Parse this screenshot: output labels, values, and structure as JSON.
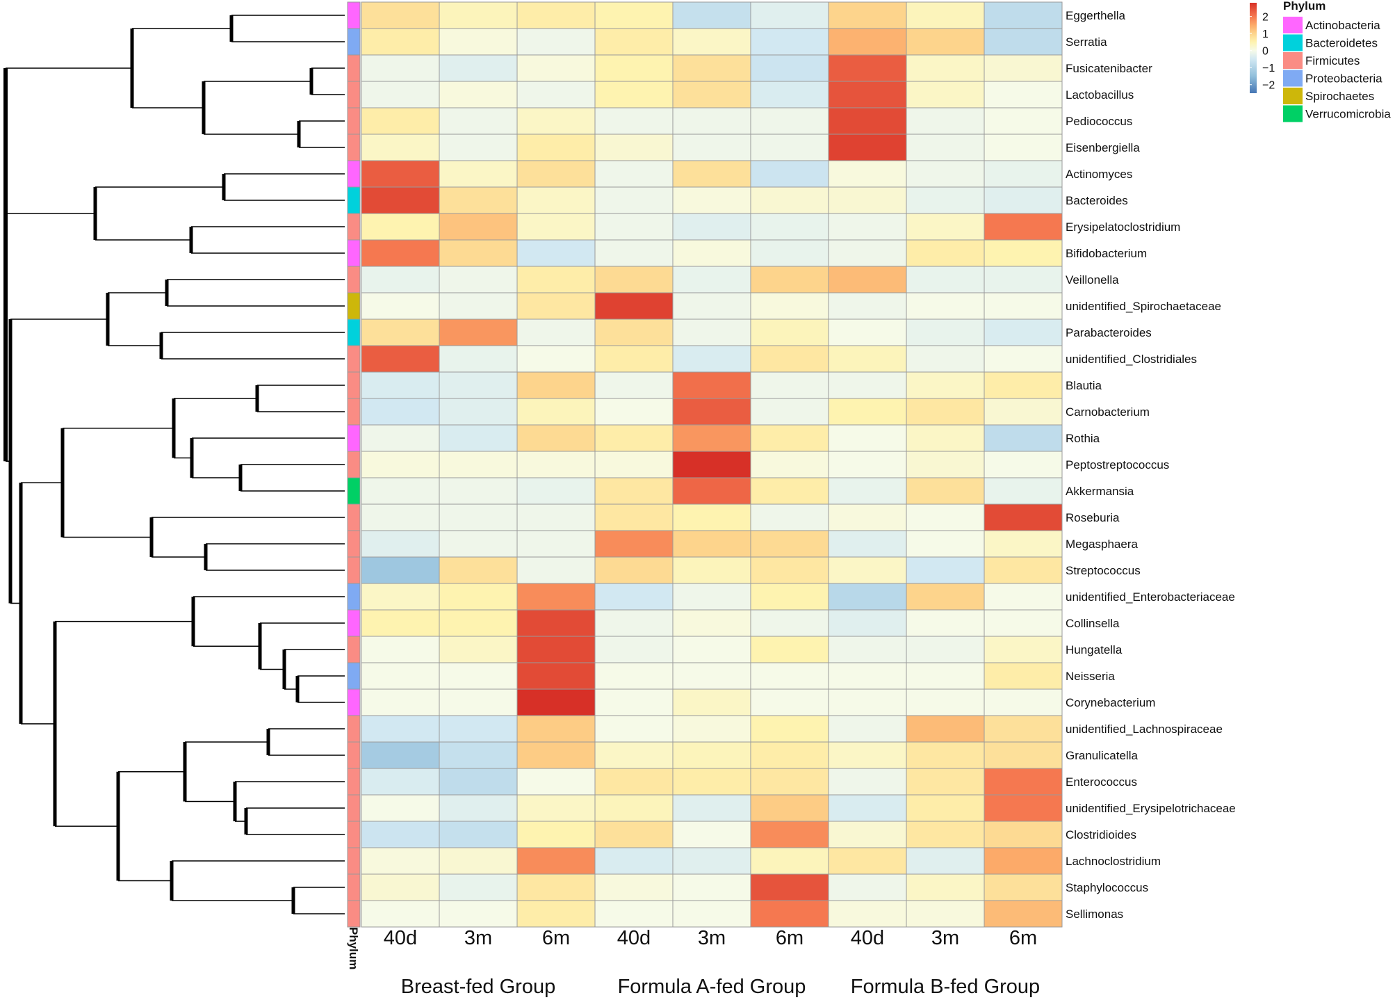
{
  "chart_data": {
    "type": "heatmap",
    "title": "",
    "rows": [
      "Eggerthella",
      "Serratia",
      "Fusicatenibacter",
      "Lactobacillus",
      "Pediococcus",
      "Eisenbergiella",
      "Actinomyces",
      "Bacteroides",
      "Erysipelatoclostridium",
      "Bifidobacterium",
      "Veillonella",
      "unidentified_Spirochaetaceae",
      "Parabacteroides",
      "unidentified_Clostridiales",
      "Blautia",
      "Carnobacterium",
      "Rothia",
      "Peptostreptococcus",
      "Akkermansia",
      "Roseburia",
      "Megasphaera",
      "Streptococcus",
      "unidentified_Enterobacteriaceae",
      "Collinsella",
      "Hungatella",
      "Neisseria",
      "Corynebacterium",
      "unidentified_Lachnospiraceae",
      "Granulicatella",
      "Enterococcus",
      "unidentified_Erysipelotrichaceae",
      "Clostridioides",
      "Lachnoclostridium",
      "Staphylococcus",
      "Sellimonas"
    ],
    "columns": [
      "40d",
      "3m",
      "6m",
      "40d",
      "3m",
      "6m",
      "40d",
      "3m",
      "6m"
    ],
    "groups": [
      {
        "name": "Breast-fed Group",
        "columns": [
          0,
          1,
          2
        ]
      },
      {
        "name": "Formula A-fed Group",
        "columns": [
          3,
          4,
          5
        ]
      },
      {
        "name": "Formula B-fed Group",
        "columns": [
          6,
          7,
          8
        ]
      }
    ],
    "values": [
      [
        0.8,
        0.4,
        0.6,
        0.5,
        -0.7,
        -0.3,
        1.0,
        0.4,
        -0.8
      ],
      [
        0.6,
        0.1,
        -0.1,
        0.6,
        0.3,
        -0.5,
        1.4,
        1.0,
        -0.8
      ],
      [
        -0.1,
        -0.3,
        0.1,
        0.5,
        0.8,
        -0.6,
        2.3,
        0.3,
        0.2
      ],
      [
        -0.1,
        0.1,
        -0.1,
        0.5,
        0.8,
        -0.4,
        2.4,
        0.3,
        0.0
      ],
      [
        0.6,
        -0.1,
        0.3,
        -0.1,
        -0.1,
        -0.1,
        2.5,
        -0.1,
        0.0
      ],
      [
        0.3,
        -0.1,
        0.6,
        0.2,
        -0.1,
        -0.1,
        2.6,
        -0.1,
        0.0
      ],
      [
        2.3,
        0.3,
        0.8,
        -0.1,
        0.8,
        -0.6,
        0.1,
        -0.1,
        -0.2
      ],
      [
        2.5,
        0.8,
        0.3,
        -0.1,
        0.1,
        0.2,
        0.2,
        -0.2,
        -0.3
      ],
      [
        0.5,
        1.2,
        0.3,
        -0.1,
        -0.3,
        -0.2,
        -0.1,
        0.3,
        2.0
      ],
      [
        2.0,
        0.9,
        -0.5,
        -0.1,
        0.1,
        -0.2,
        -0.1,
        0.6,
        0.5
      ],
      [
        -0.2,
        -0.1,
        0.6,
        0.9,
        -0.2,
        1.0,
        1.3,
        -0.2,
        -0.2
      ],
      [
        0.0,
        -0.1,
        0.7,
        2.6,
        -0.1,
        0.1,
        -0.1,
        0.0,
        0.0
      ],
      [
        0.8,
        1.7,
        -0.1,
        0.8,
        -0.1,
        0.4,
        0.0,
        -0.2,
        -0.4
      ],
      [
        2.3,
        -0.2,
        0.0,
        0.6,
        -0.4,
        0.7,
        0.4,
        -0.1,
        0.0
      ],
      [
        -0.4,
        -0.3,
        1.0,
        -0.1,
        2.1,
        -0.1,
        -0.1,
        0.3,
        0.6
      ],
      [
        -0.5,
        -0.3,
        0.4,
        0.0,
        2.3,
        -0.1,
        0.5,
        0.7,
        0.2
      ],
      [
        -0.1,
        -0.4,
        0.9,
        0.6,
        1.7,
        0.6,
        0.0,
        0.3,
        -0.8
      ],
      [
        0.1,
        0.1,
        0.1,
        0.1,
        2.8,
        0.1,
        0.0,
        0.2,
        0.0
      ],
      [
        -0.1,
        -0.1,
        -0.2,
        0.7,
        2.2,
        0.6,
        -0.2,
        0.8,
        -0.2
      ],
      [
        -0.1,
        -0.1,
        -0.1,
        0.7,
        0.5,
        -0.1,
        0.1,
        0.0,
        2.5
      ],
      [
        -0.3,
        -0.1,
        -0.1,
        1.8,
        1.0,
        0.9,
        -0.3,
        0.0,
        0.3
      ],
      [
        -1.3,
        0.8,
        -0.1,
        0.9,
        0.4,
        0.7,
        0.3,
        -0.5,
        0.7
      ],
      [
        0.3,
        0.5,
        1.8,
        -0.5,
        -0.1,
        0.5,
        -0.9,
        1.0,
        0.0
      ],
      [
        0.5,
        0.5,
        2.5,
        -0.1,
        0.1,
        -0.1,
        -0.3,
        0.0,
        0.0
      ],
      [
        0.0,
        0.3,
        2.5,
        -0.1,
        0.0,
        0.5,
        -0.1,
        -0.1,
        0.3
      ],
      [
        0.0,
        0.0,
        2.5,
        0.0,
        0.0,
        0.0,
        0.0,
        0.0,
        0.6
      ],
      [
        0.0,
        0.0,
        2.8,
        0.0,
        0.3,
        0.0,
        0.0,
        0.0,
        0.0
      ],
      [
        -0.5,
        -0.5,
        1.1,
        0.0,
        0.1,
        0.5,
        -0.1,
        1.3,
        0.8
      ],
      [
        -1.2,
        -0.7,
        1.1,
        0.3,
        0.4,
        0.6,
        0.3,
        0.7,
        0.8
      ],
      [
        -0.4,
        -0.8,
        0.0,
        0.7,
        0.6,
        0.7,
        -0.1,
        0.7,
        2.0
      ],
      [
        0.0,
        -0.3,
        0.3,
        0.4,
        -0.3,
        1.1,
        -0.4,
        0.6,
        2.0
      ],
      [
        -0.6,
        -0.7,
        0.5,
        0.8,
        0.0,
        1.8,
        0.2,
        0.7,
        0.9
      ],
      [
        0.1,
        0.2,
        1.8,
        -0.4,
        -0.3,
        0.4,
        0.7,
        -0.3,
        1.5
      ],
      [
        0.2,
        -0.2,
        0.7,
        0.1,
        0.0,
        2.4,
        -0.1,
        0.3,
        0.8
      ],
      [
        0.0,
        0.0,
        0.6,
        0.0,
        0.0,
        2.0,
        0.1,
        0.1,
        1.3
      ]
    ],
    "row_phylum": [
      "Actinobacteria",
      "Proteobacteria",
      "Firmicutes",
      "Firmicutes",
      "Firmicutes",
      "Firmicutes",
      "Actinobacteria",
      "Bacteroidetes",
      "Firmicutes",
      "Actinobacteria",
      "Firmicutes",
      "Spirochaetes",
      "Bacteroidetes",
      "Firmicutes",
      "Firmicutes",
      "Firmicutes",
      "Actinobacteria",
      "Firmicutes",
      "Verrucomicrobia",
      "Firmicutes",
      "Firmicutes",
      "Firmicutes",
      "Proteobacteria",
      "Actinobacteria",
      "Firmicutes",
      "Proteobacteria",
      "Actinobacteria",
      "Firmicutes",
      "Firmicutes",
      "Firmicutes",
      "Firmicutes",
      "Firmicutes",
      "Firmicutes",
      "Firmicutes",
      "Firmicutes"
    ],
    "color_scale": {
      "min": -2.5,
      "max": 2.8,
      "ticks": [
        2,
        1,
        0,
        -1,
        -2
      ],
      "tick_labels": [
        "2",
        "1",
        "0",
        "−1",
        "−2"
      ]
    },
    "phylum_axis_label": "Phylum",
    "legend": {
      "title": "Phylum",
      "entries": [
        {
          "name": "Actinobacteria",
          "color": "#FF66FF"
        },
        {
          "name": "Bacteroidetes",
          "color": "#00D1DC"
        },
        {
          "name": "Firmicutes",
          "color": "#FA8C84"
        },
        {
          "name": "Proteobacteria",
          "color": "#7FAAF3"
        },
        {
          "name": "Spirochaetes",
          "color": "#CDB70A"
        },
        {
          "name": "Verrucomicrobia",
          "color": "#00D065"
        }
      ]
    }
  }
}
